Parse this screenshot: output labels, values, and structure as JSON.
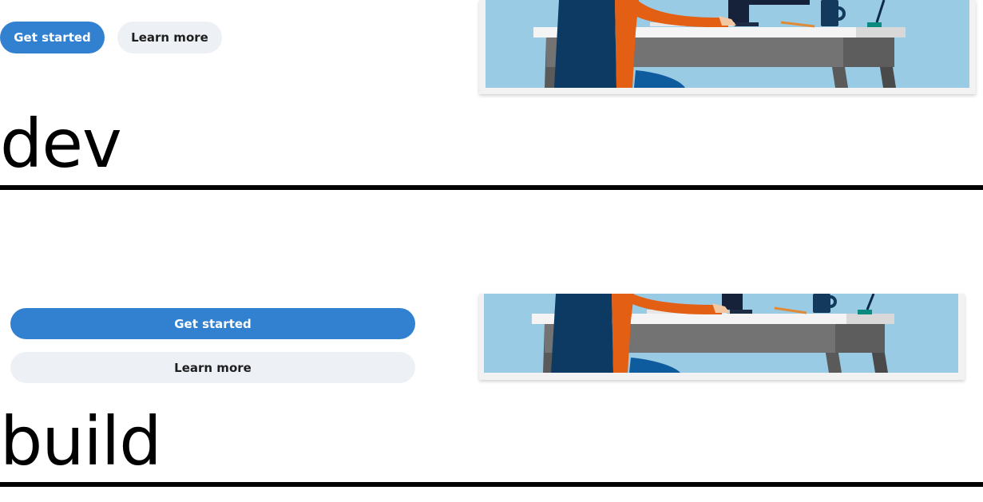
{
  "section_top": {
    "buttons": {
      "primary_label": "Get started",
      "secondary_label": "Learn more"
    },
    "heading": "dev"
  },
  "section_bottom": {
    "buttons": {
      "primary_label": "Get started",
      "secondary_label": "Learn more"
    },
    "heading": "build"
  },
  "colors": {
    "primary_button": "#3181d0",
    "secondary_button": "#edf1f6",
    "illustration_bg": "#9acbe4",
    "person_shirt": "#e25f14",
    "chair": "#0d3a63"
  }
}
